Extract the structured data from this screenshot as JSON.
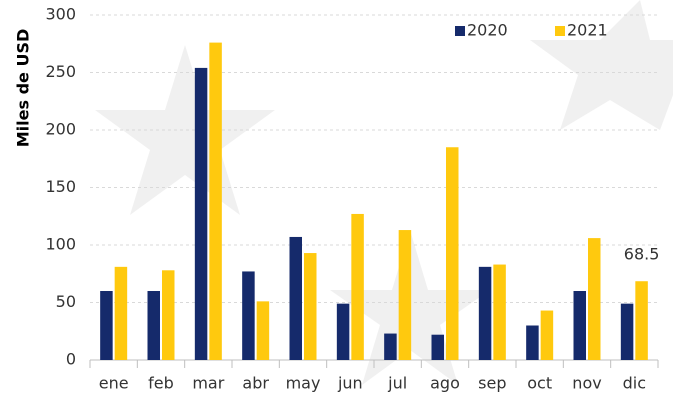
{
  "chart_data": {
    "type": "bar",
    "y_label": "Miles de USD",
    "categories": [
      "ene",
      "feb",
      "mar",
      "abr",
      "may",
      "jun",
      "jul",
      "ago",
      "sep",
      "oct",
      "nov",
      "dic"
    ],
    "series": [
      {
        "name": "2020",
        "color": "#152a6b",
        "values": [
          60,
          60,
          254,
          77,
          107,
          49,
          23,
          22,
          81,
          30,
          60,
          49
        ]
      },
      {
        "name": "2021",
        "color": "#ffc90e",
        "values": [
          81,
          78,
          276,
          51,
          93,
          127,
          113,
          185,
          83,
          43,
          106,
          68.5
        ],
        "value_labels": [
          null,
          null,
          null,
          null,
          null,
          null,
          null,
          null,
          null,
          null,
          null,
          "68.5"
        ]
      }
    ],
    "ylim": [
      0,
      300
    ],
    "yticks": [
      0,
      50,
      100,
      150,
      200,
      250,
      300
    ],
    "grid": true,
    "legend": "top-right"
  }
}
